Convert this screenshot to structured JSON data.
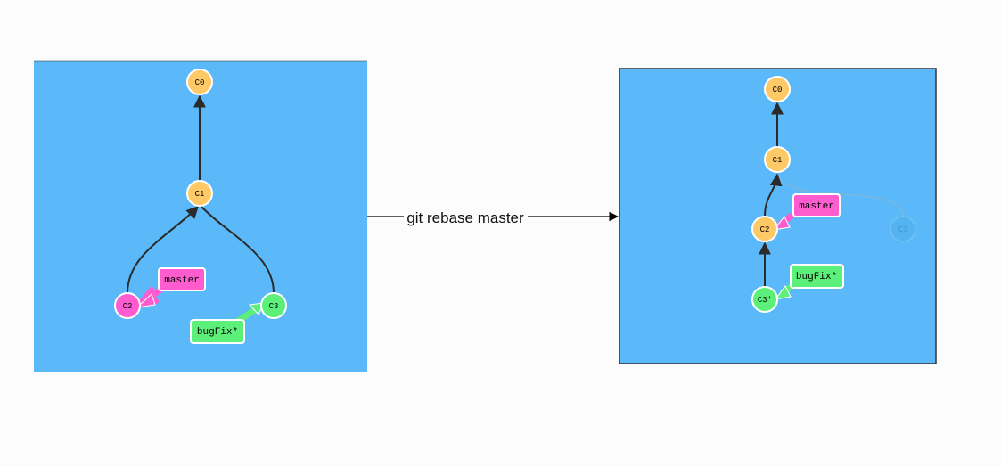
{
  "colors": {
    "background": "#fcfcfc",
    "panel": "#5bb9f9",
    "panel_border": "#333333",
    "commit_default": "#ffc967",
    "commit_master": "#ff5cd0",
    "commit_bugfix": "#5cf07a",
    "branch_master": "#ff5cd0",
    "branch_bugfix": "#5cf07a",
    "edge": "#2a2a2a",
    "ghost": "#5fb3e6"
  },
  "before": {
    "commits": [
      {
        "id": "c0",
        "label": "C0",
        "branch": "default"
      },
      {
        "id": "c1",
        "label": "C1",
        "branch": "default"
      },
      {
        "id": "c2",
        "label": "C2",
        "branch": "master"
      },
      {
        "id": "c3",
        "label": "C3",
        "branch": "bugfix"
      }
    ],
    "branches": [
      {
        "label": "master",
        "target": "c2"
      },
      {
        "label": "bugFix*",
        "target": "c3"
      }
    ]
  },
  "transition": {
    "command": "git rebase master"
  },
  "after": {
    "commits": [
      {
        "id": "c0",
        "label": "C0",
        "branch": "default"
      },
      {
        "id": "c1",
        "label": "C1",
        "branch": "default"
      },
      {
        "id": "c2",
        "label": "C2",
        "branch": "default"
      },
      {
        "id": "c3p",
        "label": "C3'",
        "branch": "bugfix"
      },
      {
        "id": "c3ghost",
        "label": "C3",
        "branch": "ghost"
      }
    ],
    "branches": [
      {
        "label": "master",
        "target": "c2"
      },
      {
        "label": "bugFix*",
        "target": "c3p"
      }
    ]
  }
}
